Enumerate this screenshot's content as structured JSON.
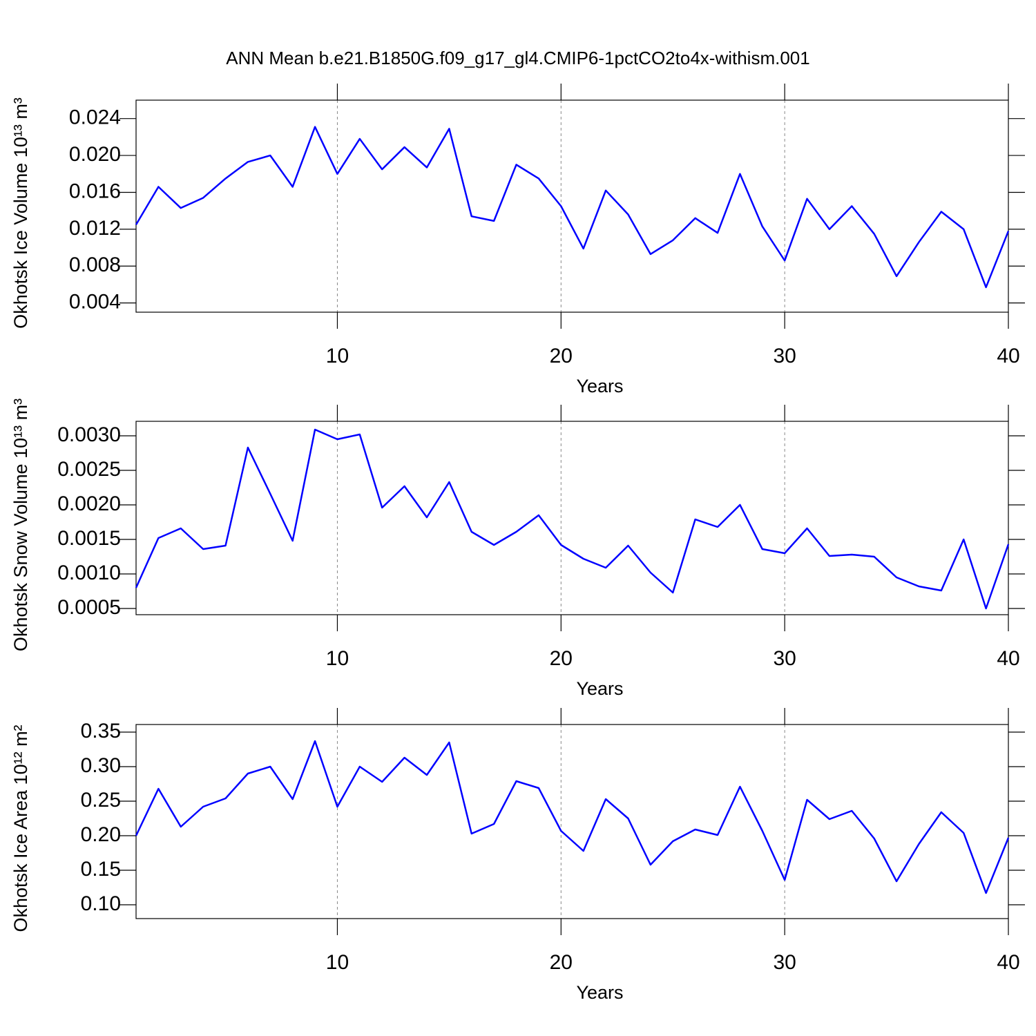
{
  "chart_data": [
    {
      "type": "line",
      "title": "ANN Mean b.e21.B1850G.f09_g17_gl4.CMIP6-1pctCO2to4x-withism.001",
      "xlabel": "Years",
      "ylabel": "Okhotsk Ice Volume 10¹³ m³",
      "color": "#0000ff",
      "grid": true,
      "x": [
        1,
        2,
        3,
        4,
        5,
        6,
        7,
        8,
        9,
        10,
        11,
        12,
        13,
        14,
        15,
        16,
        17,
        18,
        19,
        20,
        21,
        22,
        23,
        24,
        25,
        26,
        27,
        28,
        29,
        30,
        31,
        32,
        33,
        34,
        35,
        36,
        37,
        38,
        39,
        40
      ],
      "values": [
        0.0125,
        0.0166,
        0.0143,
        0.0154,
        0.0175,
        0.0193,
        0.02,
        0.0166,
        0.0231,
        0.018,
        0.0218,
        0.0185,
        0.0209,
        0.0187,
        0.0229,
        0.0134,
        0.0129,
        0.019,
        0.0175,
        0.0145,
        0.0099,
        0.0162,
        0.0136,
        0.0093,
        0.0108,
        0.0132,
        0.0116,
        0.018,
        0.0123,
        0.0086,
        0.0153,
        0.012,
        0.0145,
        0.0115,
        0.0069,
        0.0106,
        0.0139,
        0.012,
        0.0057,
        0.0118
      ],
      "xlim": [
        1,
        40
      ],
      "xticks": [
        10,
        20,
        30,
        40
      ],
      "ylim": [
        0.003,
        0.026
      ],
      "yticks": [
        0.004,
        0.008,
        0.012,
        0.016,
        {
          "value": 0.02,
          "label": "0.020"
        },
        0.024
      ]
    },
    {
      "type": "line",
      "xlabel": "Years",
      "ylabel": "Okhotsk Snow Volume 10¹³ m³",
      "color": "#0000ff",
      "grid": true,
      "x": [
        1,
        2,
        3,
        4,
        5,
        6,
        7,
        8,
        9,
        10,
        11,
        12,
        13,
        14,
        15,
        16,
        17,
        18,
        19,
        20,
        21,
        22,
        23,
        24,
        25,
        26,
        27,
        28,
        29,
        30,
        31,
        32,
        33,
        34,
        35,
        36,
        37,
        38,
        39,
        40
      ],
      "values": [
        0.0008,
        0.00152,
        0.00166,
        0.00136,
        0.00141,
        0.00283,
        0.00216,
        0.00148,
        0.00309,
        0.00295,
        0.00302,
        0.00196,
        0.00227,
        0.00182,
        0.00233,
        0.00161,
        0.00142,
        0.00161,
        0.00185,
        0.00142,
        0.00122,
        0.00109,
        0.00141,
        0.00102,
        0.00073,
        0.00179,
        0.00168,
        0.002,
        0.00136,
        0.0013,
        0.00166,
        0.00126,
        0.00128,
        0.00125,
        0.00095,
        0.00082,
        0.00076,
        0.0015,
        0.0005,
        0.00143
      ],
      "xlim": [
        1,
        40
      ],
      "xticks": [
        10,
        20,
        30,
        40
      ],
      "ylim": [
        0.00041,
        0.00321
      ],
      "yticks": [
        0.0005,
        {
          "value": 0.001,
          "label": "0.0010"
        },
        0.0015,
        {
          "value": 0.002,
          "label": "0.0020"
        },
        0.0025,
        {
          "value": 0.003,
          "label": "0.0030"
        }
      ]
    },
    {
      "type": "line",
      "xlabel": "Years",
      "ylabel": "Okhotsk Ice Area 10¹² m²",
      "color": "#0000ff",
      "grid": true,
      "x": [
        1,
        2,
        3,
        4,
        5,
        6,
        7,
        8,
        9,
        10,
        11,
        12,
        13,
        14,
        15,
        16,
        17,
        18,
        19,
        20,
        21,
        22,
        23,
        24,
        25,
        26,
        27,
        28,
        29,
        30,
        31,
        32,
        33,
        34,
        35,
        36,
        37,
        38,
        39,
        40
      ],
      "values": [
        0.2,
        0.268,
        0.213,
        0.242,
        0.254,
        0.29,
        0.3,
        0.253,
        0.337,
        0.242,
        0.3,
        0.278,
        0.313,
        0.288,
        0.335,
        0.203,
        0.217,
        0.279,
        0.269,
        0.207,
        0.178,
        0.253,
        0.225,
        0.158,
        0.192,
        0.209,
        0.201,
        0.271,
        0.207,
        0.136,
        0.252,
        0.224,
        0.236,
        0.196,
        0.134,
        0.188,
        0.234,
        0.204,
        0.117,
        0.197
      ],
      "xlim": [
        1,
        40
      ],
      "xticks": [
        10,
        20,
        30,
        40
      ],
      "ylim": [
        0.08,
        0.361
      ],
      "yticks": [
        {
          "value": 0.1,
          "label": "0.10"
        },
        0.15,
        {
          "value": 0.2,
          "label": "0.20"
        },
        0.25,
        {
          "value": 0.3,
          "label": "0.30"
        },
        0.35
      ]
    }
  ]
}
